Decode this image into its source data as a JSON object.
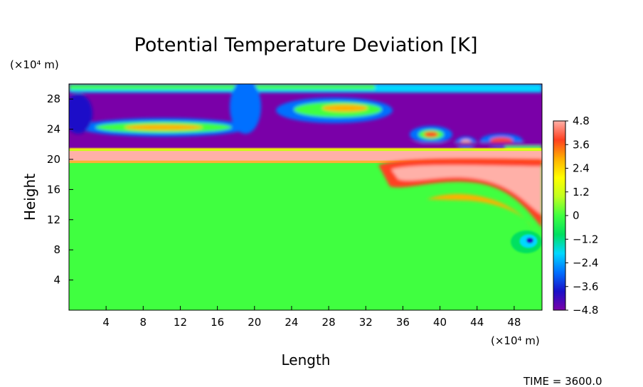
{
  "chart_data": {
    "type": "heatmap",
    "title": "Potential Temperature Deviation [K]",
    "xlabel": "Length",
    "ylabel": "Height",
    "x_unit": "(×10⁴ m)",
    "y_unit": "(×10⁴ m)",
    "xlim": [
      0,
      51
    ],
    "ylim": [
      0,
      30
    ],
    "x_ticks": [
      "4",
      "8",
      "12",
      "16",
      "20",
      "24",
      "28",
      "32",
      "36",
      "40",
      "44",
      "48"
    ],
    "y_ticks": [
      "4",
      "8",
      "12",
      "16",
      "20",
      "24",
      "28"
    ],
    "colorbar": {
      "min": -4.8,
      "max": 4.8,
      "labels": [
        "4.8",
        "3.6",
        "2.4",
        "1.2",
        "0",
        "−1.2",
        "−2.4",
        "−3.6",
        "−4.8"
      ],
      "colors": [
        "#7a00a8",
        "#1a10c8",
        "#0070ff",
        "#00d8ff",
        "#00e060",
        "#40ff40",
        "#c0ff20",
        "#ffff00",
        "#ffb000",
        "#ff4020",
        "#ffb0a8"
      ]
    },
    "background_value": 0,
    "features": [
      {
        "name": "upper layer",
        "value": -4.8,
        "y_range": [
          21.5,
          30
        ]
      },
      {
        "name": "inversion layer",
        "value": 4.8,
        "y_range": [
          19.5,
          21.3
        ]
      },
      {
        "name": "warm plume",
        "value": 4.8,
        "x_range": [
          34,
          51
        ],
        "y_range": [
          11,
          19.5
        ]
      },
      {
        "name": "cold blob",
        "value": -3.6,
        "x_center": 49,
        "y_center": 9.5
      }
    ],
    "footer": "TIME =  3600.0"
  }
}
